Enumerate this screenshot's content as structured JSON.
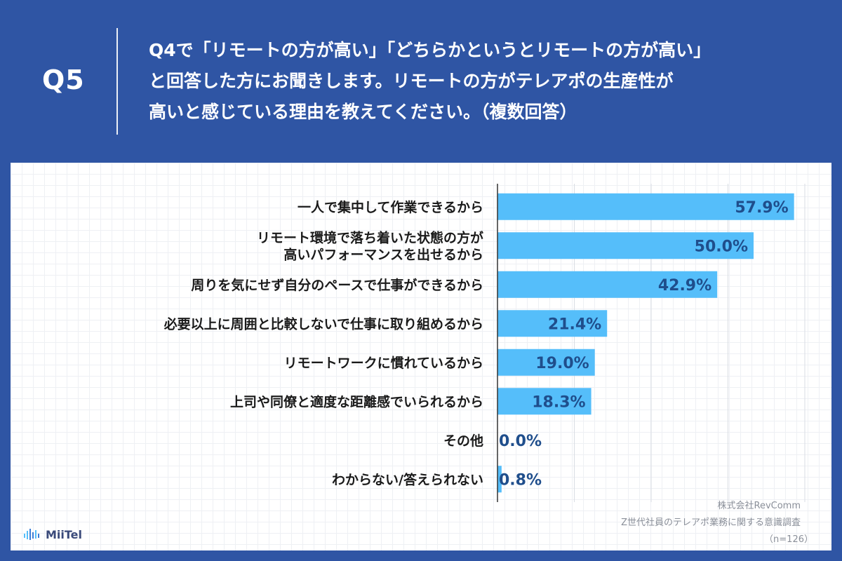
{
  "header": {
    "question_number": "Q5",
    "question_lines": [
      "Q4で「リモートの方が高い」「どちらかというとリモートの方が高い」",
      "と回答した方にお聞きします。リモートの方がテレアポの生産性が",
      "高いと感じている理由を教えてください。（複数回答）"
    ]
  },
  "chart_data": {
    "type": "bar",
    "orientation": "horizontal",
    "title": "",
    "categories": [
      [
        "一人で集中して作業できるから"
      ],
      [
        "リモート環境で落ち着いた状態の方が",
        "高いパフォーマンスを出せるから"
      ],
      [
        "周りを気にせず自分のペースで仕事ができるから"
      ],
      [
        "必要以上に周囲と比較しないで仕事に取り組めるから"
      ],
      [
        "リモートワークに慣れているから"
      ],
      [
        "上司や同僚と適度な距離感でいられるから"
      ],
      [
        "その他"
      ],
      [
        "わからない/答えられない"
      ]
    ],
    "values": [
      57.9,
      50.0,
      42.9,
      21.4,
      19.0,
      18.3,
      0.0,
      0.8
    ],
    "value_labels": [
      "57.9%",
      "50.0%",
      "42.9%",
      "21.4%",
      "19.0%",
      "18.3%",
      "0.0%",
      "0.8%"
    ],
    "xlim": [
      0,
      60
    ],
    "gridlines": [
      0,
      15,
      30,
      45,
      60
    ],
    "xlabel": "",
    "ylabel": "",
    "colors": {
      "bar": "#55befa",
      "label_inside": "#1f4e8c",
      "label_outside": "#1f4e8c",
      "grid": "#d9dde3",
      "axis": "#333333"
    }
  },
  "footer": {
    "company": "株式会社RevComm",
    "survey": "Z世代社員のテレアポ業務に関する意識調査",
    "sample": "（n=126）",
    "logo_text": "MiiTel"
  }
}
